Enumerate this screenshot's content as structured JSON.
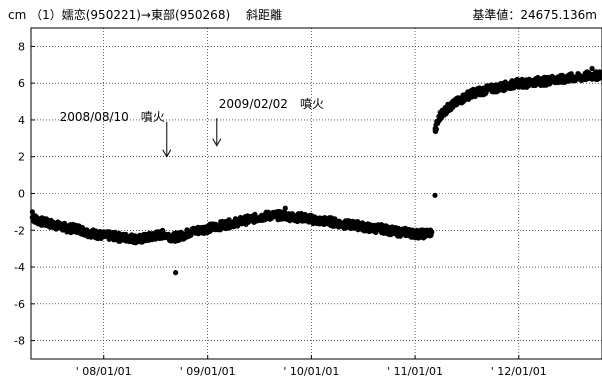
{
  "chart_data": {
    "type": "scatter",
    "title_left": "cm （1）嬬恋(950221)→東部(950268)　 斜距離",
    "title_right": "基準値：24675.136m",
    "xlabel": "",
    "ylabel": "",
    "ylim": [
      -9,
      9
    ],
    "y_ticks": [
      8,
      6,
      4,
      2,
      0,
      -2,
      -4,
      -6,
      -8
    ],
    "x_range": [
      "2007-04-20",
      "2012-10-20"
    ],
    "x_ticks": [
      {
        "date": "2008-01-01",
        "label": "' 08/01/01"
      },
      {
        "date": "2009-01-01",
        "label": "' 09/01/01"
      },
      {
        "date": "2010-01-01",
        "label": "' 10/01/01"
      },
      {
        "date": "2011-01-01",
        "label": "' 11/01/01"
      },
      {
        "date": "2012-01-01",
        "label": "' 12/01/01"
      }
    ],
    "grid": true,
    "marker_color": "#000000",
    "series": [
      {
        "points": [
          [
            "2007-04-25",
            -1.3
          ],
          [
            "2007-05-20",
            -1.5
          ],
          [
            "2007-06-15",
            -1.6
          ],
          [
            "2007-07-10",
            -1.7
          ],
          [
            "2007-08-05",
            -1.8
          ],
          [
            "2007-09-01",
            -1.9
          ],
          [
            "2007-10-01",
            -1.9
          ],
          [
            "2007-11-01",
            -2.1
          ],
          [
            "2007-12-01",
            -2.2
          ],
          [
            "2008-01-01",
            -2.3
          ],
          [
            "2008-02-01",
            -2.3
          ],
          [
            "2008-03-01",
            -2.4
          ],
          [
            "2008-04-01",
            -2.4
          ],
          [
            "2008-05-01",
            -2.5
          ],
          [
            "2008-06-01",
            -2.4
          ],
          [
            "2008-07-01",
            -2.3
          ],
          [
            "2008-08-01",
            -2.2
          ],
          [
            "2008-09-01",
            -2.4
          ],
          [
            "2008-10-01",
            -2.3
          ],
          [
            "2008-11-01",
            -2.1
          ],
          [
            "2008-12-01",
            -2.0
          ],
          [
            "2009-01-01",
            -1.9
          ],
          [
            "2009-02-01",
            -1.8
          ],
          [
            "2009-03-01",
            -1.7
          ],
          [
            "2009-04-01",
            -1.6
          ],
          [
            "2009-05-01",
            -1.5
          ],
          [
            "2009-06-01",
            -1.4
          ],
          [
            "2009-07-01",
            -1.3
          ],
          [
            "2009-08-01",
            -1.2
          ],
          [
            "2009-09-01",
            -1.2
          ],
          [
            "2009-10-01",
            -1.2
          ],
          [
            "2009-11-01",
            -1.3
          ],
          [
            "2009-12-01",
            -1.3
          ],
          [
            "2010-01-01",
            -1.4
          ],
          [
            "2010-02-01",
            -1.5
          ],
          [
            "2010-03-01",
            -1.5
          ],
          [
            "2010-04-01",
            -1.6
          ],
          [
            "2010-05-01",
            -1.7
          ],
          [
            "2010-06-01",
            -1.7
          ],
          [
            "2010-07-01",
            -1.8
          ],
          [
            "2010-08-01",
            -1.9
          ],
          [
            "2010-09-01",
            -1.9
          ],
          [
            "2010-10-01",
            -2.0
          ],
          [
            "2010-11-01",
            -2.1
          ],
          [
            "2010-12-01",
            -2.1
          ],
          [
            "2011-01-01",
            -2.2
          ],
          [
            "2011-02-01",
            -2.2
          ],
          [
            "2011-03-01",
            -2.1
          ],
          [
            "2011-03-12",
            -0.1
          ],
          [
            "2011-03-13",
            3.4
          ],
          [
            "2011-03-20",
            3.8
          ],
          [
            "2011-04-01",
            4.3
          ],
          [
            "2011-05-01",
            4.7
          ],
          [
            "2011-06-01",
            5.0
          ],
          [
            "2011-07-01",
            5.3
          ],
          [
            "2011-08-01",
            5.5
          ],
          [
            "2011-09-01",
            5.6
          ],
          [
            "2011-10-01",
            5.7
          ],
          [
            "2011-11-01",
            5.8
          ],
          [
            "2011-12-01",
            5.9
          ],
          [
            "2012-01-01",
            6.0
          ],
          [
            "2012-02-01",
            6.0
          ],
          [
            "2012-03-01",
            6.1
          ],
          [
            "2012-04-01",
            6.1
          ],
          [
            "2012-05-01",
            6.2
          ],
          [
            "2012-06-01",
            6.2
          ],
          [
            "2012-07-01",
            6.3
          ],
          [
            "2012-08-01",
            6.3
          ],
          [
            "2012-09-01",
            6.4
          ],
          [
            "2012-10-01",
            6.4
          ],
          [
            "2012-10-15",
            6.5
          ],
          [
            "2008-09-10",
            -4.3
          ],
          [
            "2007-04-25",
            -1.0
          ],
          [
            "2009-10-01",
            -0.8
          ],
          [
            "2012-09-15",
            6.8
          ]
        ]
      }
    ],
    "annotations": [
      {
        "text": "2008/08/10　噴火",
        "arrow_date": "2008-08-10",
        "arrow_from": 3.9,
        "arrow_to": 2.0
      },
      {
        "text": "2009/02/02　噴火",
        "arrow_date": "2009-02-02",
        "arrow_from": 4.1,
        "arrow_to": 2.6
      }
    ]
  }
}
